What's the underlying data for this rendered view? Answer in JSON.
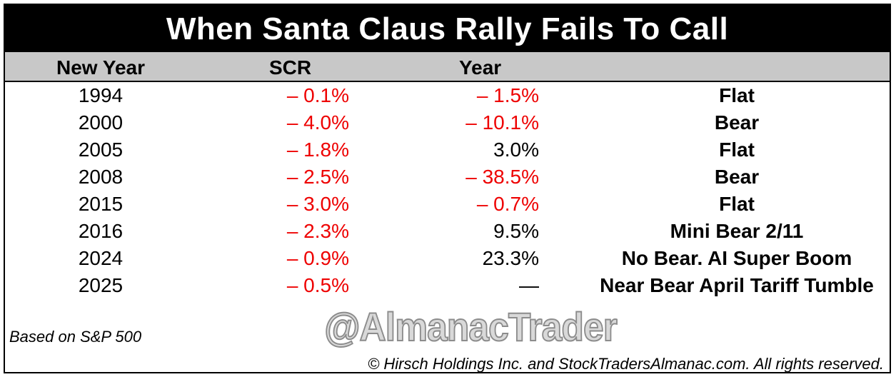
{
  "chart_data": {
    "type": "table",
    "title": "When Santa Claus Rally Fails To Call",
    "columns": [
      "New Year",
      "SCR",
      "Year",
      ""
    ],
    "rows": [
      {
        "year": "1994",
        "scr": "– 0.1%",
        "scr_value": -0.1,
        "annual": "– 1.5%",
        "annual_value": -1.5,
        "note": "Flat"
      },
      {
        "year": "2000",
        "scr": "– 4.0%",
        "scr_value": -4.0,
        "annual": "– 10.1%",
        "annual_value": -10.1,
        "note": "Bear"
      },
      {
        "year": "2005",
        "scr": "– 1.8%",
        "scr_value": -1.8,
        "annual": "3.0%",
        "annual_value": 3.0,
        "note": "Flat"
      },
      {
        "year": "2008",
        "scr": "– 2.5%",
        "scr_value": -2.5,
        "annual": "– 38.5%",
        "annual_value": -38.5,
        "note": "Bear"
      },
      {
        "year": "2015",
        "scr": "– 3.0%",
        "scr_value": -3.0,
        "annual": "– 0.7%",
        "annual_value": -0.7,
        "note": "Flat"
      },
      {
        "year": "2016",
        "scr": "– 2.3%",
        "scr_value": -2.3,
        "annual": "9.5%",
        "annual_value": 9.5,
        "note": "Mini Bear 2/11"
      },
      {
        "year": "2024",
        "scr": "– 0.9%",
        "scr_value": -0.9,
        "annual": "23.3%",
        "annual_value": 23.3,
        "note": "No Bear. AI Super Boom"
      },
      {
        "year": "2025",
        "scr": "– 0.5%",
        "scr_value": -0.5,
        "annual": "—",
        "annual_value": null,
        "note": "Near Bear April Tariff Tumble"
      }
    ],
    "watermark": "@AlmanacTrader",
    "footnote": "Based on S&P 500",
    "copyright": "© Hirsch Holdings Inc. and StockTradersAlmanac.com. All rights reserved.",
    "colors": {
      "negative": "#ee0000",
      "positive": "#000000",
      "header_bg": "#c8c8c8",
      "title_bg": "#000000"
    }
  }
}
